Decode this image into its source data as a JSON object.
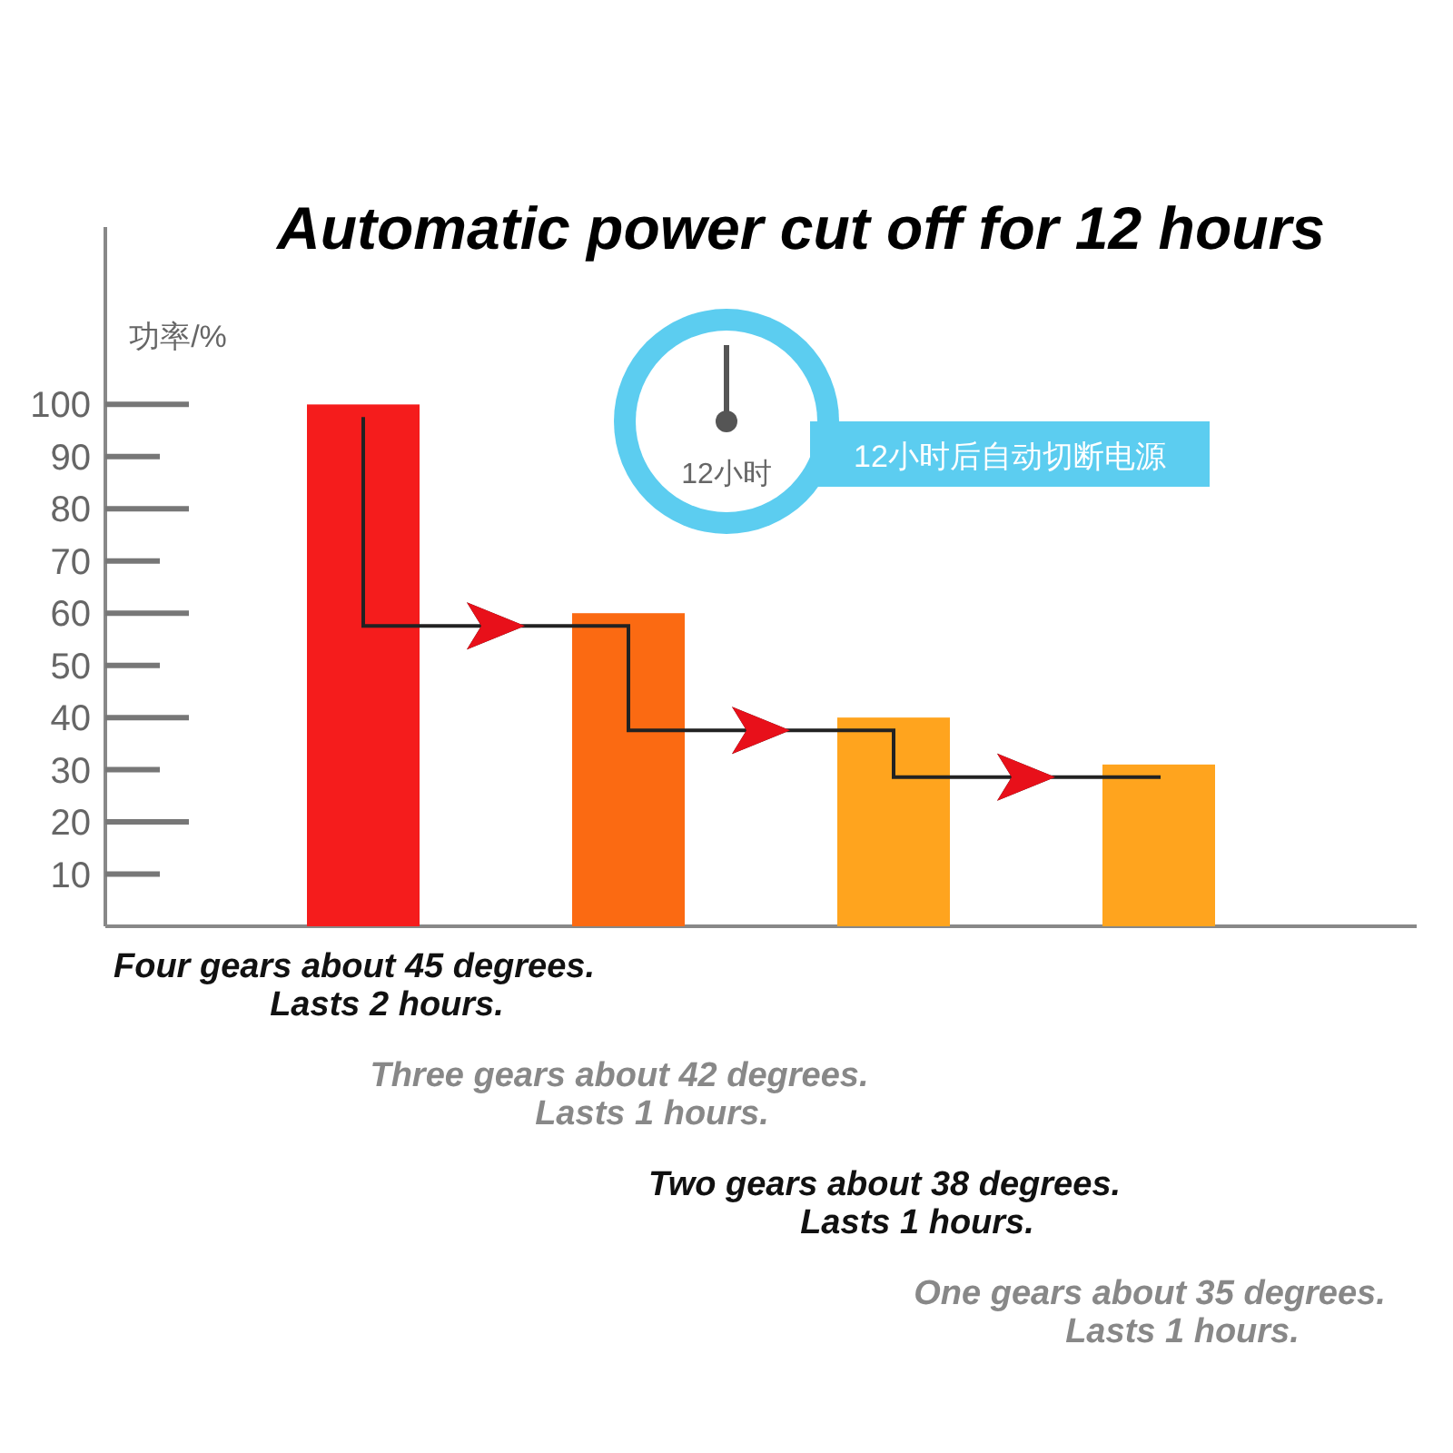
{
  "chart_data": {
    "type": "bar",
    "title": "Automatic power cut off for 12 hours",
    "ylabel": "功率/%",
    "categories": [
      null,
      null,
      null,
      null
    ],
    "values": [
      100,
      60,
      40,
      31
    ],
    "colors": [
      "#f51c1c",
      "#fb6a12",
      "#ffa41e",
      "#ffa41e"
    ],
    "ylim": [
      0,
      134
    ],
    "yticks": [
      10,
      20,
      30,
      40,
      50,
      60,
      70,
      80,
      90,
      100
    ],
    "annotations": [
      "Four gears about 45 degrees.\nLasts 2 hours.",
      "Three gears about 42 degrees.\nLasts 1 hours.",
      "Two gears about 38 degrees.\nLasts 1 hours.",
      "One gears about 35 degrees.\nLasts 1 hours.",
      "12小时",
      "12小时后自动切断电源"
    ]
  }
}
